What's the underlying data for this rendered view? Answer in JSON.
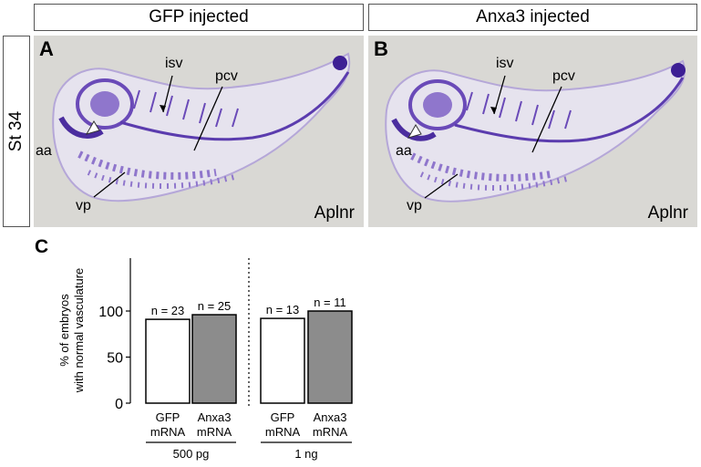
{
  "panels": [
    {
      "header": "GFP injected",
      "letter": "A",
      "marker": "Aplnr",
      "labels": {
        "isv": "isv",
        "pcv": "pcv",
        "aa": "aa",
        "vp": "vp"
      }
    },
    {
      "header": "Anxa3 injected",
      "letter": "B",
      "marker": "Aplnr",
      "labels": {
        "isv": "isv",
        "pcv": "pcv",
        "aa": "aa",
        "vp": "vp"
      }
    }
  ],
  "stage_label": "St 34",
  "colors": {
    "stain": "#5b3cae",
    "embryo": "#e4e1ec",
    "background": "#d9d8d4",
    "gfp_bar": "#ffffff",
    "anxa3_bar": "#8c8c8c"
  },
  "chart_data": {
    "type": "bar",
    "panel_letter": "C",
    "ylabel": "% of embryos with normal vasculature",
    "ylim": [
      0,
      100
    ],
    "yticks": [
      0,
      50,
      100
    ],
    "categories": [
      "GFP mRNA",
      "Anxa3 mRNA",
      "GFP mRNA",
      "Anxa3 mRNA"
    ],
    "category_lines": [
      [
        "GFP",
        "mRNA"
      ],
      [
        "Anxa3",
        "mRNA"
      ],
      [
        "GFP",
        "mRNA"
      ],
      [
        "Anxa3",
        "mRNA"
      ]
    ],
    "values": [
      91,
      96,
      92,
      100
    ],
    "annotations": [
      "n = 23",
      "n = 25",
      "n = 13",
      "n = 11"
    ],
    "groups": [
      {
        "label": "500 pg",
        "members": [
          0,
          1
        ]
      },
      {
        "label": "1 ng",
        "members": [
          2,
          3
        ]
      }
    ],
    "bar_fill": [
      "#ffffff",
      "#8c8c8c",
      "#ffffff",
      "#8c8c8c"
    ]
  }
}
